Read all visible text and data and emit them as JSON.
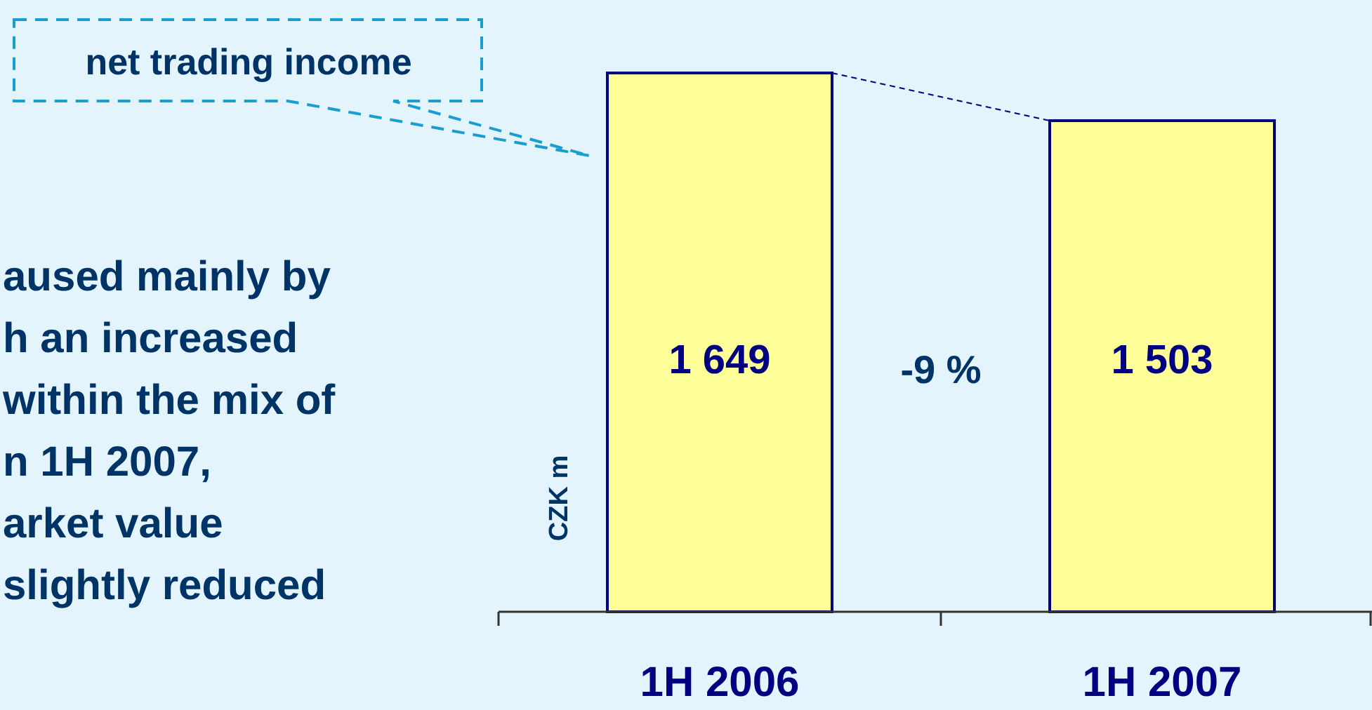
{
  "chart_data": {
    "type": "bar",
    "categories": [
      "1H 2006",
      "1H 2007"
    ],
    "values": [
      1649,
      1503
    ],
    "color": "#ffff99",
    "data_labels": true,
    "ylabel": "CZK m",
    "annotations": [
      "net trading income",
      "-9 %",
      "aused mainly by",
      "h an increased",
      "within the mix of",
      "n 1H 2007,",
      "arket value",
      "slightly reduced"
    ]
  }
}
